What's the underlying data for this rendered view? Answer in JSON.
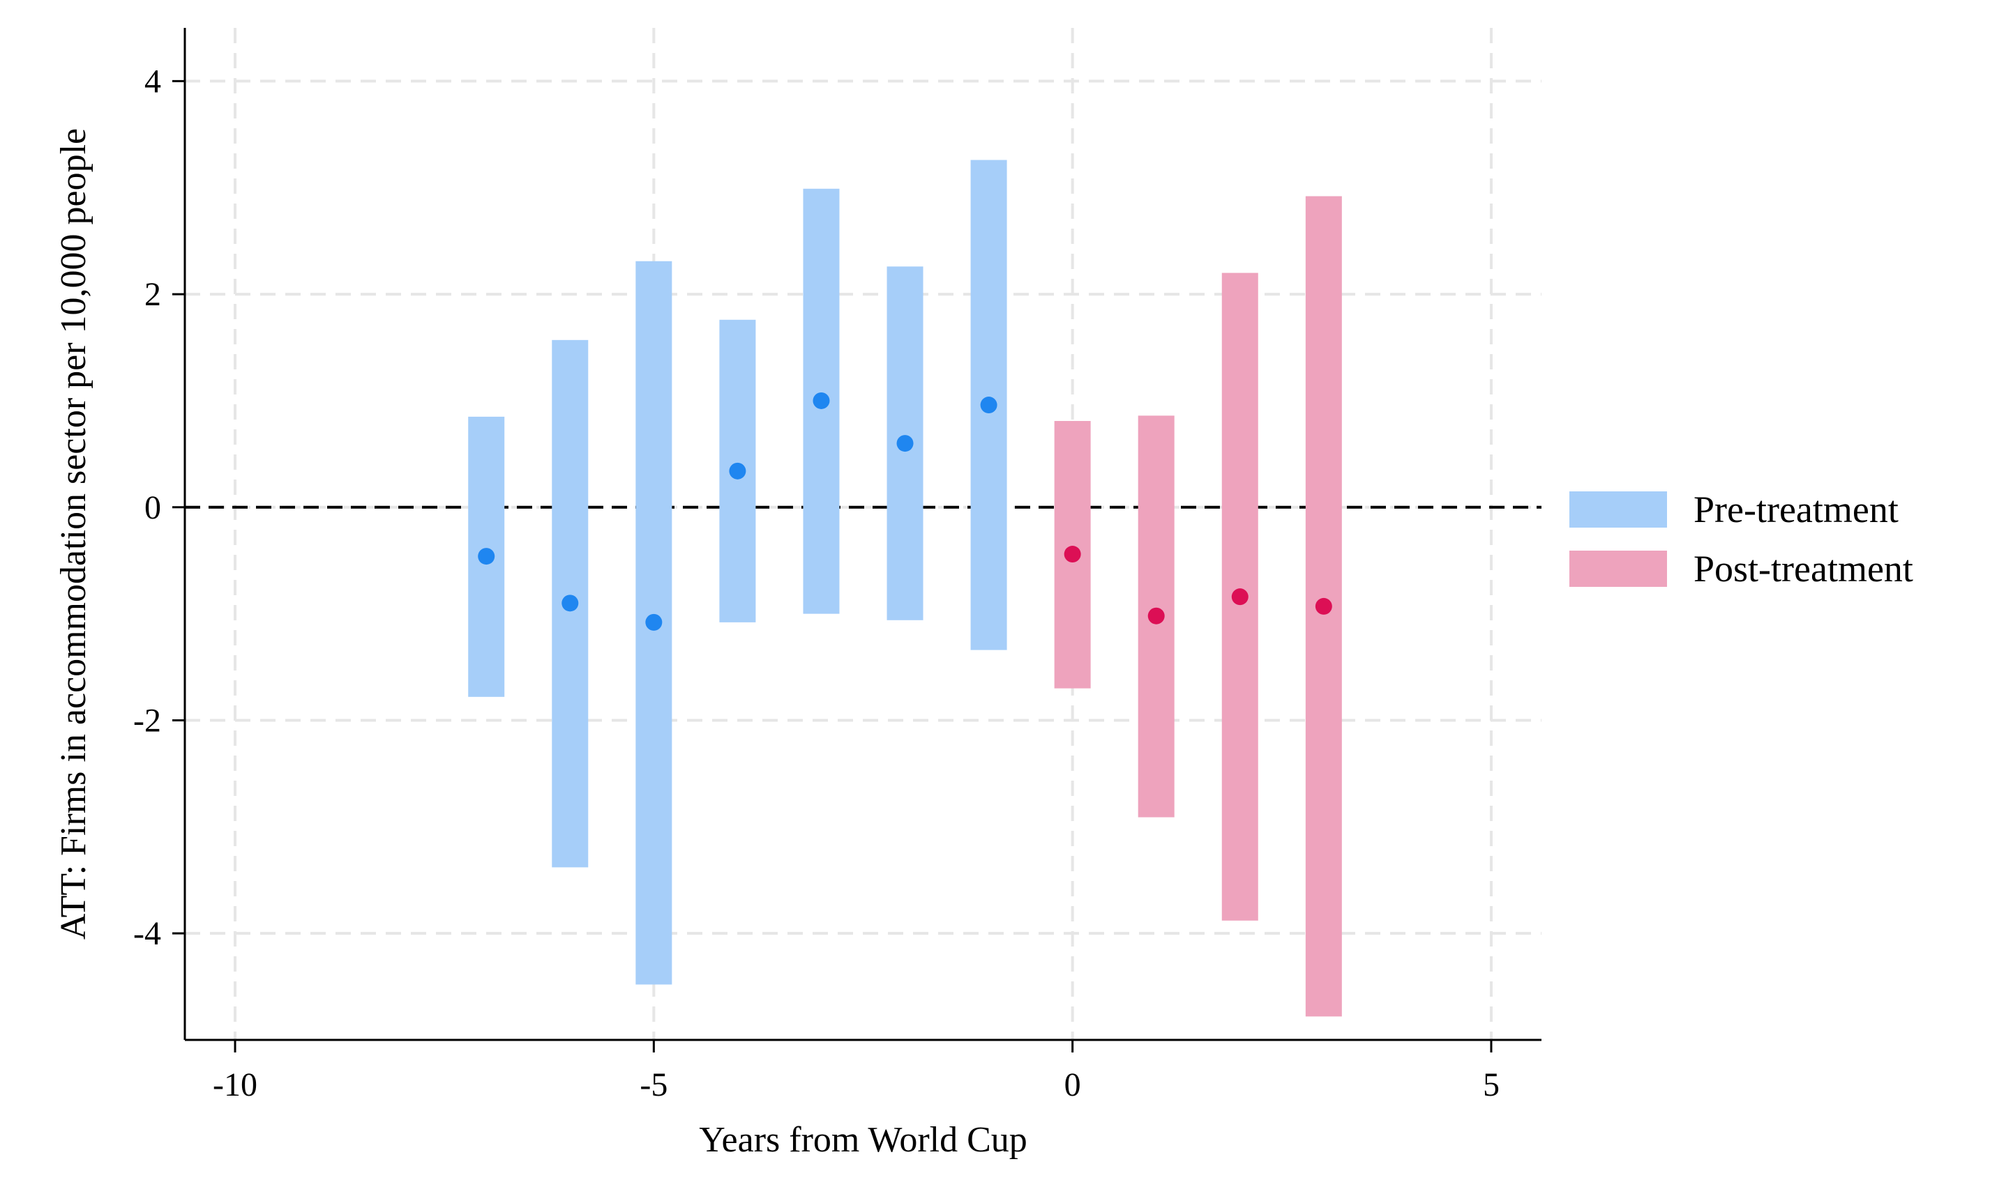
{
  "chart_data": {
    "type": "scatter",
    "title": "",
    "xlabel": "Years from World Cup",
    "ylabel": "ATT: Firms in accommodation sector per 10,000 people",
    "xlim": [
      -10.6,
      5.6
    ],
    "ylim": [
      -5,
      4.5
    ],
    "x_ticks": [
      -10,
      -5,
      0,
      5
    ],
    "y_ticks": [
      4,
      2,
      0,
      -2,
      -4
    ],
    "x_tick_labels": [
      "-10",
      "-5",
      "0",
      "5"
    ],
    "y_tick_labels": [
      "4",
      "2",
      "0",
      "-2",
      "-4"
    ],
    "grid": true,
    "reference_line": {
      "y": 0,
      "style": "dashed",
      "color": "#000000"
    },
    "legend": {
      "placement": "right",
      "entries": [
        {
          "label": "Pre-treatment",
          "color": "#a6cef9"
        },
        {
          "label": "Post-treatment",
          "color": "#eea3bd"
        }
      ]
    },
    "series": [
      {
        "name": "Pre-treatment",
        "bar_color": "#a6cef9",
        "point_color": "#1f86f0",
        "points": [
          {
            "x": -7,
            "y": -0.46,
            "lo": -1.78,
            "hi": 0.85
          },
          {
            "x": -6,
            "y": -0.9,
            "lo": -3.38,
            "hi": 1.57
          },
          {
            "x": -5,
            "y": -1.08,
            "lo": -4.48,
            "hi": 2.31
          },
          {
            "x": -4,
            "y": 0.34,
            "lo": -1.08,
            "hi": 1.76
          },
          {
            "x": -3,
            "y": 1.0,
            "lo": -1.0,
            "hi": 2.99
          },
          {
            "x": -2,
            "y": 0.6,
            "lo": -1.06,
            "hi": 2.26
          },
          {
            "x": -1,
            "y": 0.96,
            "lo": -1.34,
            "hi": 3.26
          }
        ]
      },
      {
        "name": "Post-treatment",
        "bar_color": "#eea3bd",
        "point_color": "#dc0f55",
        "points": [
          {
            "x": 0,
            "y": -0.44,
            "lo": -1.7,
            "hi": 0.81
          },
          {
            "x": 1,
            "y": -1.02,
            "lo": -2.91,
            "hi": 0.86
          },
          {
            "x": 2,
            "y": -0.84,
            "lo": -3.88,
            "hi": 2.2
          },
          {
            "x": 3,
            "y": -0.93,
            "lo": -4.78,
            "hi": 2.92
          }
        ]
      }
    ]
  }
}
